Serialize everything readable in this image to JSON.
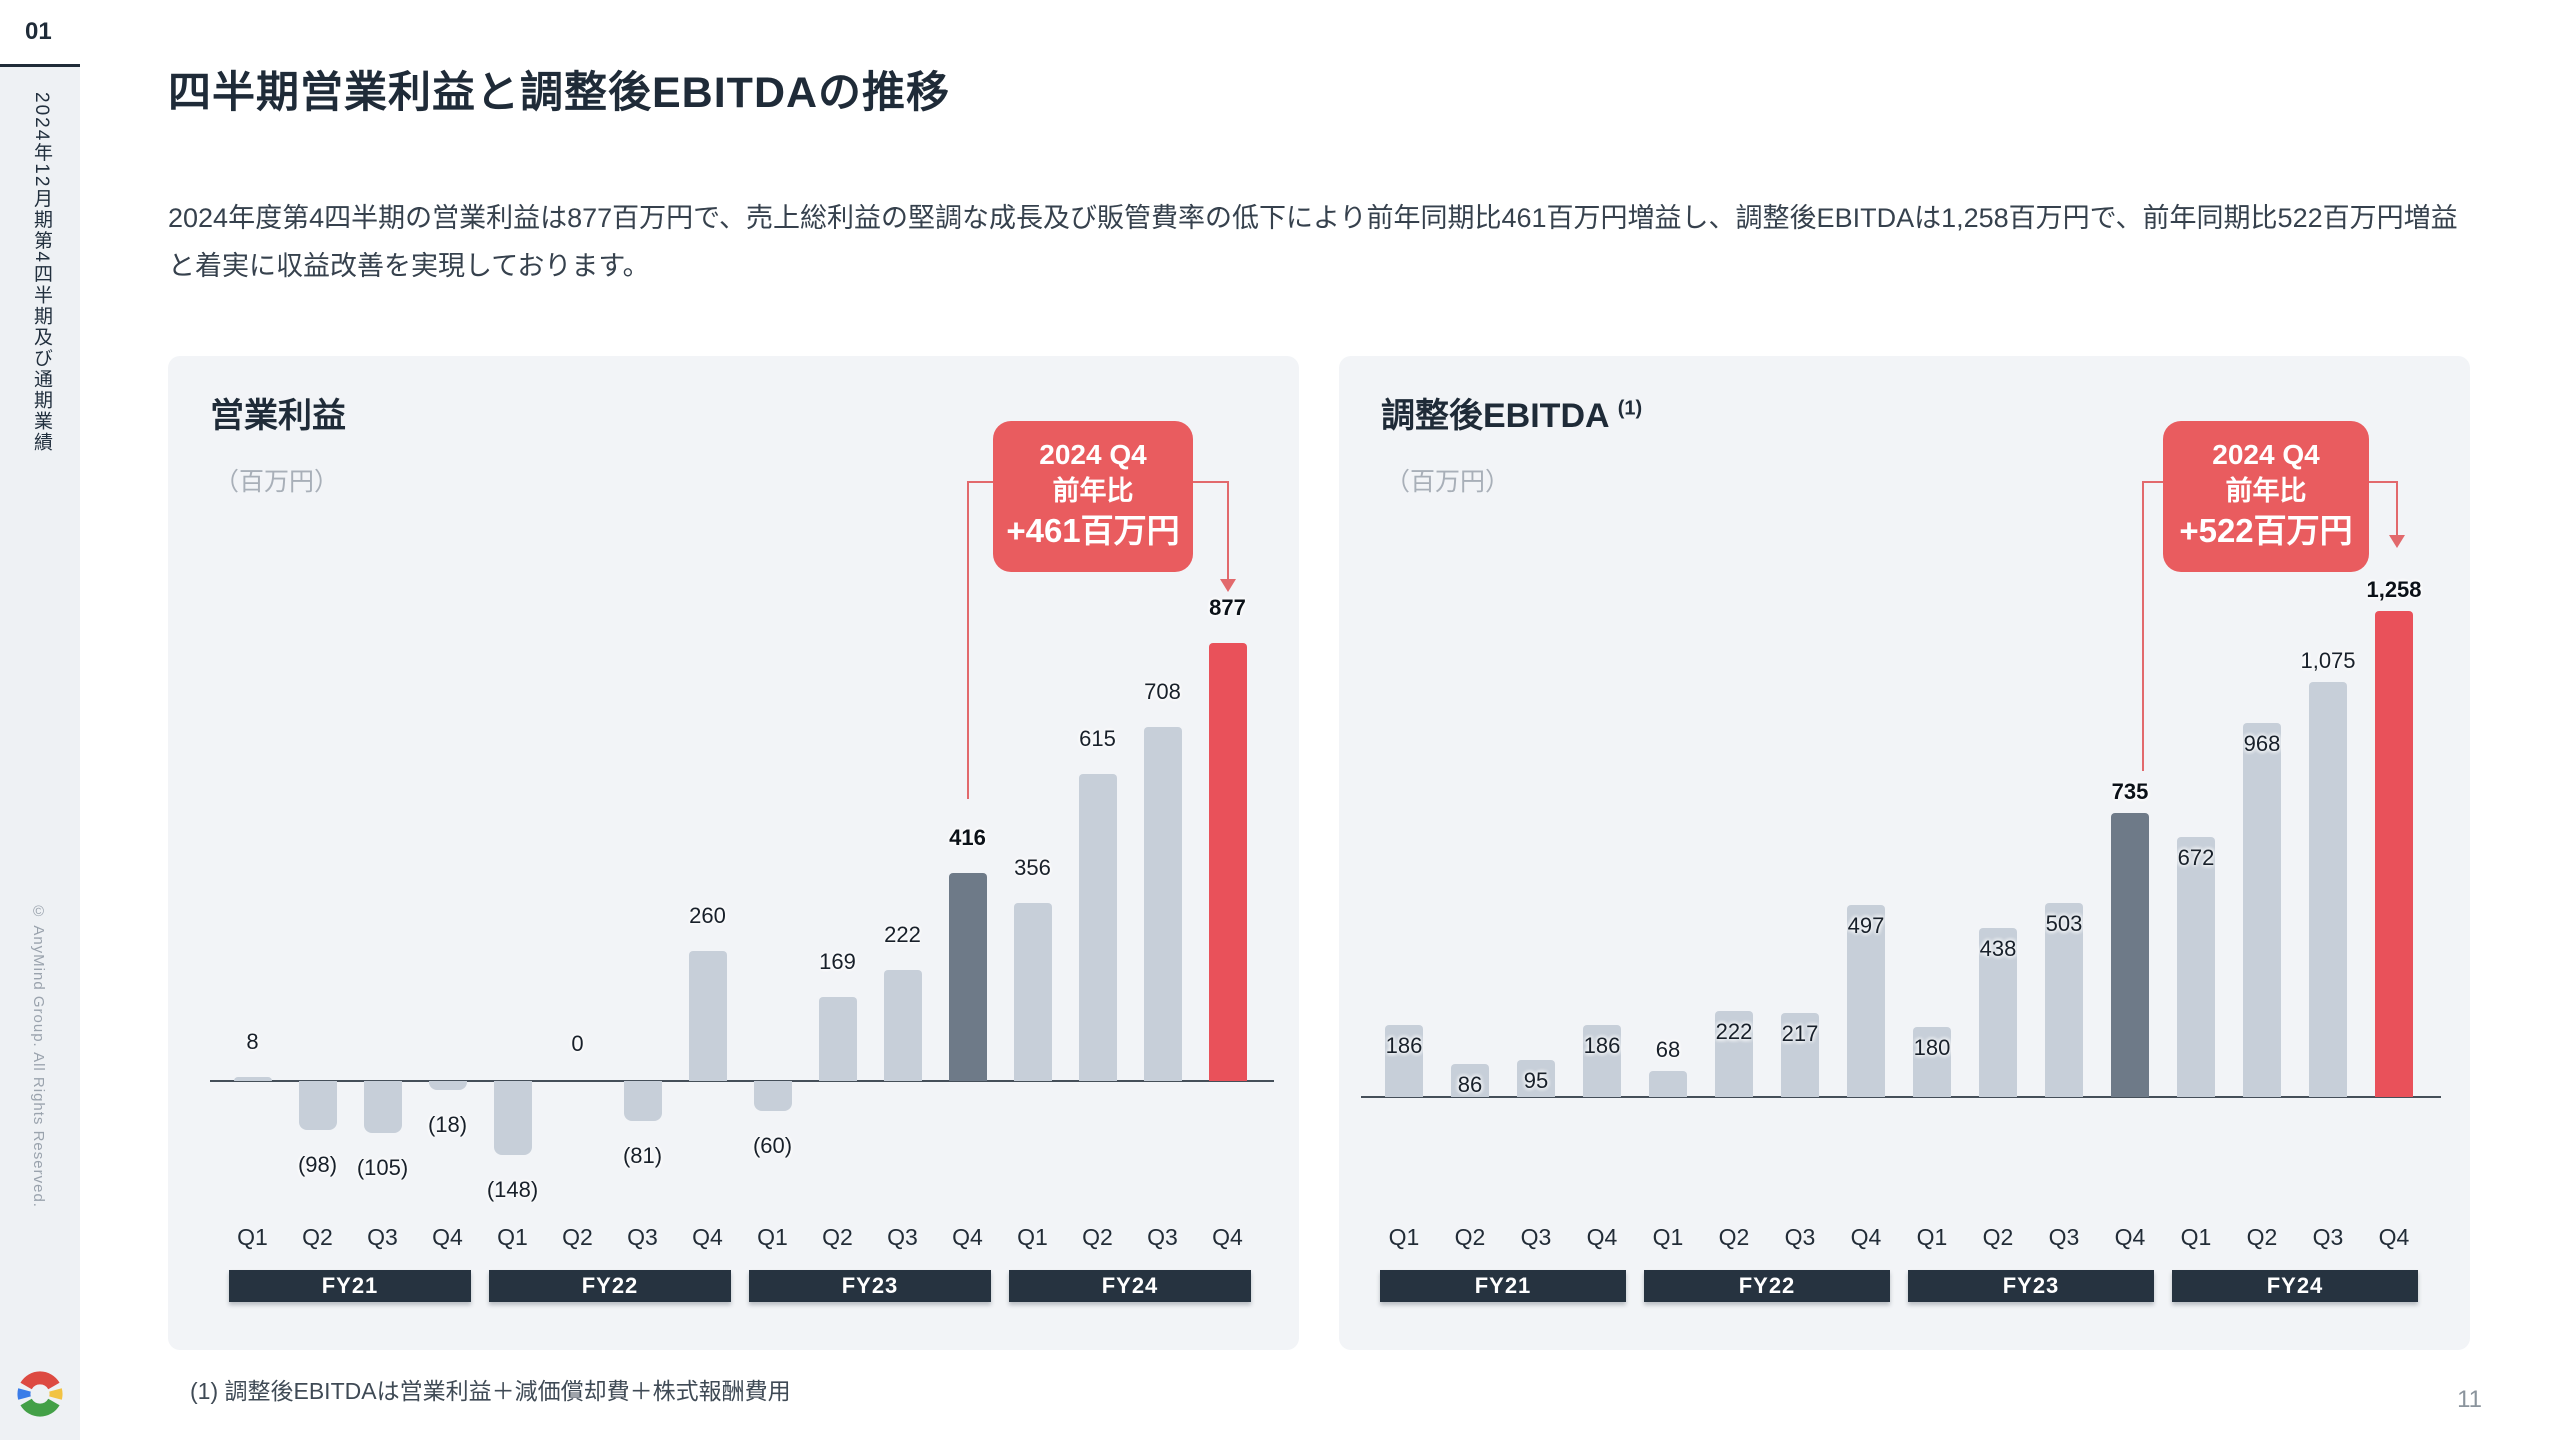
{
  "slide": {
    "section_number": "01",
    "sidebar_title": "2024年12月期第4四半期及び通期業績",
    "copyright": "© AnyMind Group. All Rights Reserved.",
    "title": "四半期営業利益と調整後EBITDAの推移",
    "body": "2024年度第4四半期の営業利益は877百万円で、売上総利益の堅調な成長及び販管費率の低下により前年同期比461百万円増益し、調整後EBITDAは1,258百万円で、前年同期比522百万円増益と着実に収益改善を実現しております。",
    "footnote": "(1) 調整後EBITDAは営業利益＋減価償却費＋株式報酬費用",
    "page_number": "11"
  },
  "colors": {
    "bar_default": "#c7cfd9",
    "bar_previous": "#6e7a88",
    "bar_current": "#e9515a",
    "callout_red": "#e95c5f",
    "connector_red": "#e2696c",
    "fy_band_navy": "#263340",
    "panel_bg": "#f2f4f7",
    "navy_text": "#1f2b38"
  },
  "chart_data": [
    {
      "type": "bar",
      "title": "営業利益",
      "title_note": "",
      "unit_label": "（百万円）",
      "categories": [
        "Q1",
        "Q2",
        "Q3",
        "Q4",
        "Q1",
        "Q2",
        "Q3",
        "Q4",
        "Q1",
        "Q2",
        "Q3",
        "Q4",
        "Q1",
        "Q2",
        "Q3",
        "Q4"
      ],
      "fiscal_years": [
        "FY21",
        "FY22",
        "FY23",
        "FY24"
      ],
      "values": [
        8,
        -98,
        -105,
        -18,
        -148,
        0,
        -81,
        260,
        -60,
        169,
        222,
        416,
        356,
        615,
        708,
        877
      ],
      "labels": [
        "8",
        "(98)",
        "(105)",
        "(18)",
        "(148)",
        "0",
        "(81)",
        "260",
        "(60)",
        "169",
        "222",
        "416",
        "356",
        "615",
        "708",
        "877"
      ],
      "previous_year_index": 11,
      "current_index": 15,
      "ylim": [
        -148,
        877
      ],
      "grid": false,
      "callout": {
        "line1": "2024 Q4",
        "line2": "前年比",
        "line3": "+461百万円"
      }
    },
    {
      "type": "bar",
      "title": "調整後EBITDA",
      "title_note": "(1)",
      "unit_label": "（百万円）",
      "categories": [
        "Q1",
        "Q2",
        "Q3",
        "Q4",
        "Q1",
        "Q2",
        "Q3",
        "Q4",
        "Q1",
        "Q2",
        "Q3",
        "Q4",
        "Q1",
        "Q2",
        "Q3",
        "Q4"
      ],
      "fiscal_years": [
        "FY21",
        "FY22",
        "FY23",
        "FY24"
      ],
      "values": [
        186,
        86,
        95,
        186,
        68,
        222,
        217,
        497,
        180,
        438,
        503,
        735,
        672,
        968,
        1075,
        1258
      ],
      "labels": [
        "186",
        "86",
        "95",
        "186",
        "68",
        "222",
        "217",
        "497",
        "180",
        "438",
        "503",
        "735",
        "672",
        "968",
        "1,075",
        "1,258"
      ],
      "previous_year_index": 11,
      "current_index": 15,
      "ylim": [
        0,
        1258
      ],
      "grid": false,
      "callout": {
        "line1": "2024 Q4",
        "line2": "前年比",
        "line3": "+522百万円"
      }
    }
  ]
}
